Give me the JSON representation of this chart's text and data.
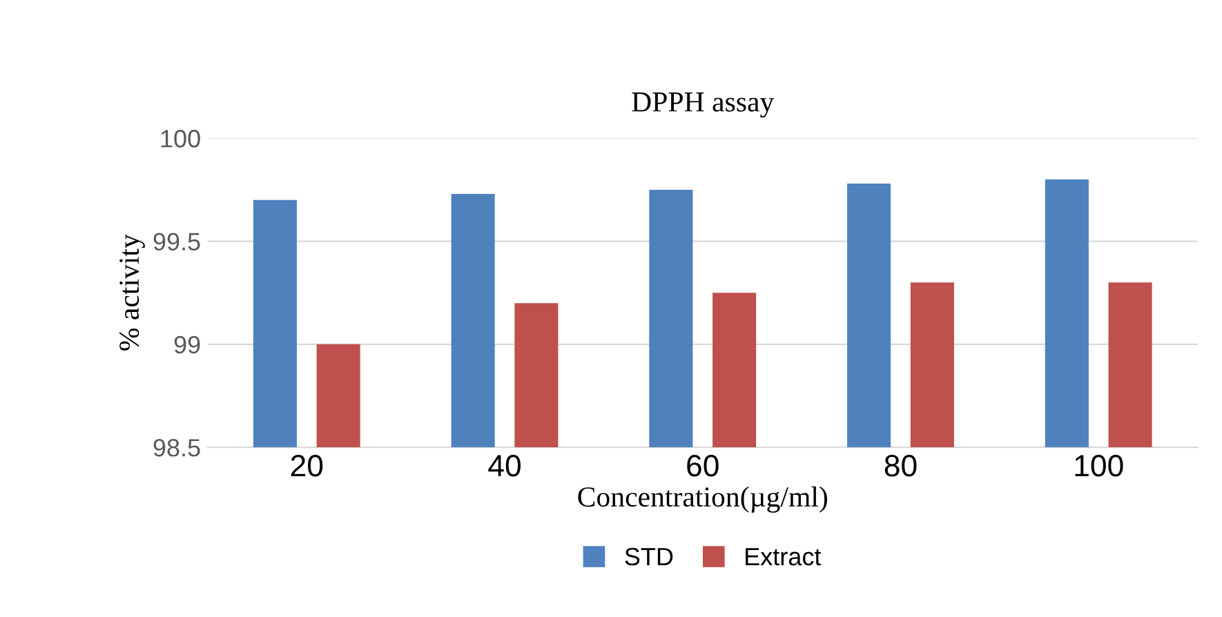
{
  "chart_data": {
    "type": "bar",
    "title": "DPPH assay",
    "xlabel": "Concentration(µg/ml)",
    "ylabel": "% activity",
    "categories": [
      "20",
      "40",
      "60",
      "80",
      "100"
    ],
    "series": [
      {
        "name": "STD",
        "color": "#4f81bd",
        "values": [
          99.7,
          99.73,
          99.75,
          99.78,
          99.8
        ]
      },
      {
        "name": "Extract",
        "color": "#c0504d",
        "values": [
          99.0,
          99.2,
          99.25,
          99.3,
          99.3
        ]
      }
    ],
    "ylim": [
      98.5,
      100
    ],
    "yticks": [
      98.5,
      99,
      {
        "value": 99.5,
        "label": "99.5"
      },
      100
    ],
    "grid": "y",
    "legend": "bottom"
  }
}
